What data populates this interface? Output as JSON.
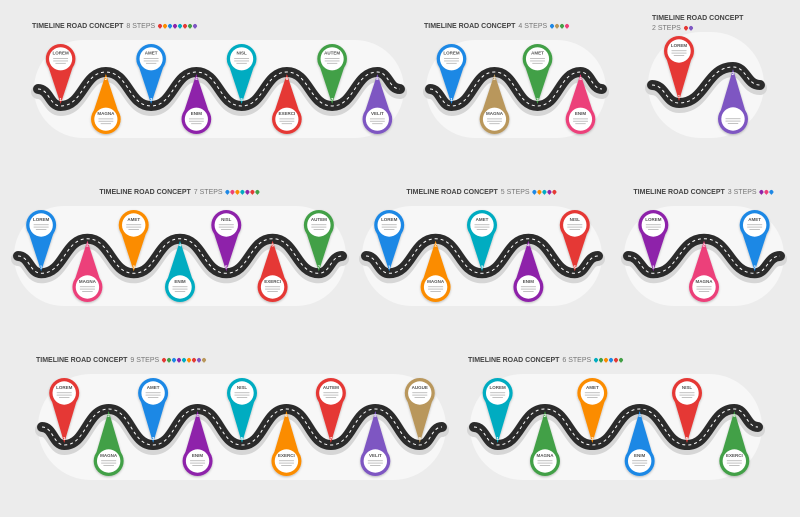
{
  "colors": {
    "red": "#e53935",
    "orange": "#fb8c00",
    "blue": "#1e88e5",
    "purple": "#8e24aa",
    "teal": "#00acc1",
    "pink": "#ec407a",
    "green": "#43a047",
    "violet": "#7e57c2",
    "tan": "#b9975b",
    "road": "#2b2b2b",
    "shadow": "#d6d6d6",
    "bg": "#ececec"
  },
  "panels": [
    {
      "id": "8-steps",
      "title": "TIMELINE ROAD CONCEPT",
      "steps_label": "8 STEPS",
      "pins": [
        {
          "label": "LOREM",
          "num": "1",
          "color": "red",
          "pos": "up"
        },
        {
          "label": "MAGNA",
          "num": "2",
          "color": "orange",
          "pos": "down"
        },
        {
          "label": "AMET",
          "num": "3",
          "color": "blue",
          "pos": "up"
        },
        {
          "label": "ENIM",
          "num": "4",
          "color": "purple",
          "pos": "down"
        },
        {
          "label": "NISL",
          "num": "5",
          "color": "teal",
          "pos": "up"
        },
        {
          "label": "EXERCI",
          "num": "6",
          "color": "red",
          "pos": "down"
        },
        {
          "label": "AUTEM",
          "num": "7",
          "color": "green",
          "pos": "up"
        },
        {
          "label": "VELIT",
          "num": "8",
          "color": "violet",
          "pos": "down"
        }
      ]
    },
    {
      "id": "4-steps",
      "title": "TIMELINE ROAD CONCEPT",
      "steps_label": "4 STEPS",
      "pins": [
        {
          "label": "LOREM",
          "num": "1",
          "color": "blue",
          "pos": "up"
        },
        {
          "label": "MAGNA",
          "num": "2",
          "color": "tan",
          "pos": "down"
        },
        {
          "label": "AMET",
          "num": "3",
          "color": "green",
          "pos": "up"
        },
        {
          "label": "ENIM",
          "num": "4",
          "color": "pink",
          "pos": "down"
        }
      ]
    },
    {
      "id": "2-steps",
      "title": "TIMELINE ROAD CONCEPT",
      "steps_label": "2 STEPS",
      "pins": [
        {
          "label": "LOREM",
          "num": "1",
          "color": "red",
          "pos": "up"
        },
        {
          "label": "",
          "num": "2",
          "color": "violet",
          "pos": "down"
        }
      ]
    },
    {
      "id": "7-steps",
      "title": "TIMELINE ROAD CONCEPT",
      "steps_label": "7 STEPS",
      "pins": [
        {
          "label": "LOREM",
          "num": "1",
          "color": "blue",
          "pos": "up"
        },
        {
          "label": "MAGNA",
          "num": "2",
          "color": "pink",
          "pos": "down"
        },
        {
          "label": "AMET",
          "num": "3",
          "color": "orange",
          "pos": "up"
        },
        {
          "label": "ENIM",
          "num": "4",
          "color": "teal",
          "pos": "down"
        },
        {
          "label": "NISL",
          "num": "5",
          "color": "purple",
          "pos": "up"
        },
        {
          "label": "EXERCI",
          "num": "6",
          "color": "red",
          "pos": "down"
        },
        {
          "label": "AUTEM",
          "num": "7",
          "color": "green",
          "pos": "up"
        }
      ]
    },
    {
      "id": "5-steps",
      "title": "TIMELINE ROAD CONCEPT",
      "steps_label": "5 STEPS",
      "pins": [
        {
          "label": "LOREM",
          "num": "1",
          "color": "blue",
          "pos": "up"
        },
        {
          "label": "MAGNA",
          "num": "2",
          "color": "orange",
          "pos": "down"
        },
        {
          "label": "AMET",
          "num": "3",
          "color": "teal",
          "pos": "up"
        },
        {
          "label": "ENIM",
          "num": "4",
          "color": "purple",
          "pos": "down"
        },
        {
          "label": "NISL",
          "num": "5",
          "color": "red",
          "pos": "up"
        }
      ]
    },
    {
      "id": "3-steps",
      "title": "TIMELINE ROAD CONCEPT",
      "steps_label": "3 STEPS",
      "pins": [
        {
          "label": "LOREM",
          "num": "1",
          "color": "purple",
          "pos": "up"
        },
        {
          "label": "MAGNA",
          "num": "2",
          "color": "pink",
          "pos": "down"
        },
        {
          "label": "AMET",
          "num": "3",
          "color": "blue",
          "pos": "up"
        }
      ]
    },
    {
      "id": "9-steps",
      "title": "TIMELINE ROAD CONCEPT",
      "steps_label": "9 STEPS",
      "pins": [
        {
          "label": "LOREM",
          "num": "1",
          "color": "red",
          "pos": "up"
        },
        {
          "label": "MAGNA",
          "num": "2",
          "color": "green",
          "pos": "down"
        },
        {
          "label": "AMET",
          "num": "3",
          "color": "blue",
          "pos": "up"
        },
        {
          "label": "ENIM",
          "num": "4",
          "color": "purple",
          "pos": "down"
        },
        {
          "label": "NISL",
          "num": "5",
          "color": "teal",
          "pos": "up"
        },
        {
          "label": "EXERCI",
          "num": "6",
          "color": "orange",
          "pos": "down"
        },
        {
          "label": "AUTEM",
          "num": "7",
          "color": "red",
          "pos": "up"
        },
        {
          "label": "VELIT",
          "num": "8",
          "color": "violet",
          "pos": "down"
        },
        {
          "label": "AUGUE",
          "num": "9",
          "color": "tan",
          "pos": "up"
        }
      ]
    },
    {
      "id": "6-steps",
      "title": "TIMELINE ROAD CONCEPT",
      "steps_label": "6 STEPS",
      "pins": [
        {
          "label": "LOREM",
          "num": "1",
          "color": "teal",
          "pos": "up"
        },
        {
          "label": "MAGNA",
          "num": "2",
          "color": "green",
          "pos": "down"
        },
        {
          "label": "AMET",
          "num": "3",
          "color": "orange",
          "pos": "up"
        },
        {
          "label": "ENIM",
          "num": "4",
          "color": "blue",
          "pos": "down"
        },
        {
          "label": "NISL",
          "num": "5",
          "color": "red",
          "pos": "up"
        },
        {
          "label": "EXERCI",
          "num": "6",
          "color": "green",
          "pos": "down"
        }
      ]
    }
  ]
}
